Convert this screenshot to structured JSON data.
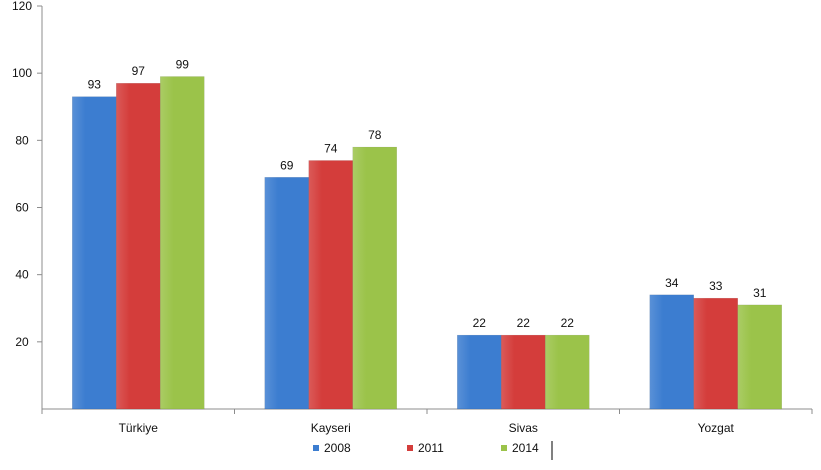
{
  "chart_data": {
    "type": "bar",
    "title": "",
    "xlabel": "",
    "ylabel": "",
    "ylim": [
      0,
      120
    ],
    "yticks": [
      20,
      40,
      60,
      80,
      100,
      120
    ],
    "grid": false,
    "legend_position": "bottom",
    "categories": [
      "Türkiye",
      "Kayseri",
      "Sivas",
      "Yozgat"
    ],
    "series": [
      {
        "name": "2008",
        "color": "#3c7dd0",
        "values": [
          93,
          69,
          22,
          34
        ]
      },
      {
        "name": "2011",
        "color": "#d43d3b",
        "values": [
          97,
          74,
          22,
          33
        ]
      },
      {
        "name": "2014",
        "color": "#9bc34a",
        "values": [
          99,
          78,
          22,
          31
        ]
      }
    ]
  }
}
